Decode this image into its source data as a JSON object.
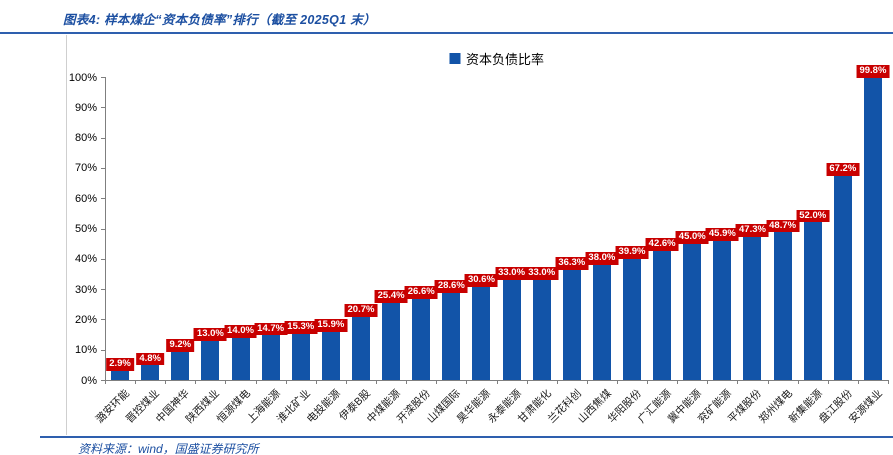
{
  "header": {
    "title": "图表4: 样本煤企“资本负债率”排行（截至 2025Q1 末）"
  },
  "footer": {
    "source": "资料来源：wind，国盛证券研究所"
  },
  "colors": {
    "bar_blue": "#1254A8",
    "label_red": "#C80000",
    "label_text": "#FFFFFF",
    "title_blue": "#1C4FA1",
    "rule_blue": "#2E5FAE",
    "axis_gray": "#7F7F7F"
  },
  "chart_data": {
    "type": "bar",
    "title": "",
    "legend": "资本负债比率",
    "legend_position": "top-center",
    "grid": false,
    "ylim": [
      0,
      100
    ],
    "ytick_step": 10,
    "ytick_format": "percent",
    "categories": [
      "潞安环能",
      "晋控煤业",
      "中国神华",
      "陕西煤业",
      "恒源煤电",
      "上海能源",
      "淮北矿业",
      "电投能源",
      "伊泰B股",
      "中煤能源",
      "开滦股份",
      "山煤国际",
      "昊华能源",
      "永泰能源",
      "甘肃能化",
      "兰花科创",
      "山西焦煤",
      "华阳股份",
      "广汇能源",
      "冀中能源",
      "兖矿能源",
      "平煤股份",
      "郑州煤电",
      "新集能源",
      "盘江股份",
      "安源煤业"
    ],
    "values": [
      2.9,
      4.8,
      9.2,
      13.0,
      14.0,
      14.7,
      15.3,
      15.9,
      20.7,
      25.4,
      26.6,
      28.6,
      30.6,
      33.0,
      33.0,
      36.3,
      38.0,
      39.9,
      42.6,
      45.0,
      45.9,
      47.3,
      48.7,
      52.0,
      67.2,
      99.8
    ],
    "value_label_format": "one-decimal-percent"
  }
}
